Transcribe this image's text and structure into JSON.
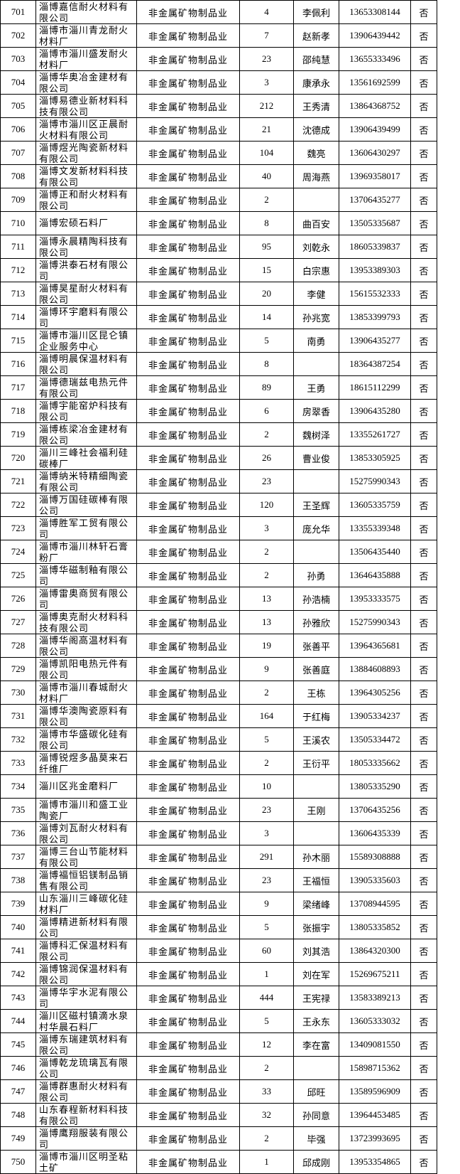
{
  "table": {
    "rows": [
      [
        "701",
        "淄博嘉信耐火材料有限公司",
        "非金属矿物制品业",
        4,
        "李佩利",
        "13653308144",
        "否"
      ],
      [
        "702",
        "淄博市淄川青龙耐火材料厂",
        "非金属矿物制品业",
        7,
        "赵新孝",
        "13906439442",
        "否"
      ],
      [
        "703",
        "淄博市淄川盛发耐火材料厂",
        "非金属矿物制品业",
        23,
        "邵纯慧",
        "13655333496",
        "否"
      ],
      [
        "704",
        "淄博华奥冶金建材有限公司",
        "非金属矿物制品业",
        3,
        "康承永",
        "13561692599",
        "否"
      ],
      [
        "705",
        "淄博易德业新材料科技有限公司",
        "非金属矿物制品业",
        212,
        "王秀清",
        "13864368752",
        "否"
      ],
      [
        "706",
        "淄博市淄川区正晨耐火材料有限公司",
        "非金属矿物制品业",
        21,
        "沈德成",
        "13906439499",
        "否"
      ],
      [
        "707",
        "淄博煜光陶瓷新材料有限公司",
        "非金属矿物制品业",
        104,
        "魏亮",
        "13606430297",
        "否"
      ],
      [
        "708",
        "淄博文发新材料科技有限公司",
        "非金属矿物制品业",
        40,
        "周海燕",
        "13969358017",
        "否"
      ],
      [
        "709",
        "淄博正和耐火材料有限公司",
        "非金属矿物制品业",
        2,
        null,
        "13706435277",
        "否"
      ],
      [
        "710",
        "淄博宏硕石料厂",
        "非金属矿物制品业",
        8,
        "曲百安",
        "13505335687",
        "否"
      ],
      [
        "711",
        "淄博永晨精陶科技有限公司",
        "非金属矿物制品业",
        95,
        "刘乾永",
        "18605339837",
        "否"
      ],
      [
        "712",
        "淄博洪泰石材有限公司",
        "非金属矿物制品业",
        15,
        "白宗惠",
        "13953389303",
        "否"
      ],
      [
        "713",
        "淄博昊星耐火材料有限公司",
        "非金属矿物制品业",
        20,
        "李健",
        "15615532333",
        "否"
      ],
      [
        "714",
        "淄博环宇磨料有限公司",
        "非金属矿物制品业",
        14,
        "孙兆宽",
        "13853399793",
        "否"
      ],
      [
        "715",
        "淄博市淄川区昆仑镇企业服务中心",
        "非金属矿物制品业",
        5,
        "南勇",
        "13906435277",
        "否"
      ],
      [
        "716",
        "淄博明晨保温材料有限公司",
        "非金属矿物制品业",
        8,
        null,
        "18364387254",
        "否"
      ],
      [
        "717",
        "淄博德瑞兹电热元件有限公司",
        "非金属矿物制品业",
        89,
        "王勇",
        "18615112299",
        "否"
      ],
      [
        "718",
        "淄博宇能窑炉科技有限公司",
        "非金属矿物制品业",
        6,
        "房翠香",
        "13906435280",
        "否"
      ],
      [
        "719",
        "淄博栋梁冶金建材有限公司",
        "非金属矿物制品业",
        2,
        "魏树泽",
        "13355261727",
        "否"
      ],
      [
        "720",
        "淄川三峰社会福利硅碳棒厂",
        "非金属矿物制品业",
        26,
        "曹业俊",
        "13853305925",
        "否"
      ],
      [
        "721",
        "淄博纳米特精细陶瓷有限公司",
        "非金属矿物制品业",
        23,
        null,
        "15275990343",
        "否"
      ],
      [
        "722",
        "淄博万国硅碳棒有限公司",
        "非金属矿物制品业",
        120,
        "王圣辉",
        "13605335759",
        "否"
      ],
      [
        "723",
        "淄博胜军工贸有限公司",
        "非金属矿物制品业",
        3,
        "庞允华",
        "13355339348",
        "否"
      ],
      [
        "724",
        "淄博市淄川林轩石膏粉厂",
        "非金属矿物制品业",
        2,
        null,
        "13506435440",
        "否"
      ],
      [
        "725",
        "淄博华磁制釉有限公司",
        "非金属矿物制品业",
        2,
        "孙勇",
        "13646435888",
        "否"
      ],
      [
        "726",
        "淄博雷奥商贸有限公司",
        "非金属矿物制品业",
        13,
        "孙浩楠",
        "13953333575",
        "否"
      ],
      [
        "727",
        "淄博奥克耐火材料科技有限公司",
        "非金属矿物制品业",
        13,
        "孙雅欣",
        "15275990343",
        "否"
      ],
      [
        "728",
        "淄博华阁高温材料有限公司",
        "非金属矿物制品业",
        19,
        "张善平",
        "13964365681",
        "否"
      ],
      [
        "729",
        "淄博凯阳电热元件有限公司",
        "非金属矿物制品业",
        9,
        "张善庭",
        "13884608893",
        "否"
      ],
      [
        "730",
        "淄博市淄川春城耐火材料厂",
        "非金属矿物制品业",
        2,
        "王栋",
        "13964305256",
        "否"
      ],
      [
        "731",
        "淄博华澳陶瓷原料有限公司",
        "非金属矿物制品业",
        164,
        "于红梅",
        "13905334237",
        "否"
      ],
      [
        "732",
        "淄博市华盛碳化硅有限公司",
        "非金属矿物制品业",
        5,
        "王溪农",
        "13505334472",
        "否"
      ],
      [
        "733",
        "淄博锐煜多晶莫来石纤维厂",
        "非金属矿物制品业",
        2,
        "王衍平",
        "18053335662",
        "否"
      ],
      [
        "734",
        "淄川区兆金磨料厂",
        "非金属矿物制品业",
        10,
        null,
        "13805335290",
        "否"
      ],
      [
        "735",
        "淄博市淄川和盛工业陶瓷厂",
        "非金属矿物制品业",
        23,
        "王刚",
        "13706435256",
        "否"
      ],
      [
        "736",
        "淄博刘瓦耐火材料有限公司",
        "非金属矿物制品业",
        3,
        null,
        "13606435339",
        "否"
      ],
      [
        "737",
        "淄博三台山节能材料有限公司",
        "非金属矿物制品业",
        291,
        "孙木丽",
        "15589308888",
        "否"
      ],
      [
        "738",
        "淄博福恒铝镁制品销售有限公司",
        "非金属矿物制品业",
        23,
        "王福恒",
        "13905335603",
        "否"
      ],
      [
        "739",
        "山东淄川三峰碳化硅材料厂",
        "非金属矿物制品业",
        9,
        "梁绪峰",
        "13708944595",
        "否"
      ],
      [
        "740",
        "淄博精进新材料有限公司",
        "非金属矿物制品业",
        5,
        "张振宇",
        "13805335852",
        "否"
      ],
      [
        "741",
        "淄博科汇保温材料有限公司",
        "非金属矿物制品业",
        60,
        "刘其浩",
        "13864320300",
        "否"
      ],
      [
        "742",
        "淄博锦润保温材料有限公司",
        "非金属矿物制品业",
        1,
        "刘在军",
        "15269675211",
        "否"
      ],
      [
        "743",
        "淄博华宇水泥有限公司",
        "非金属矿物制品业",
        444,
        "王宪禄",
        "13583389213",
        "否"
      ],
      [
        "744",
        "淄川区磁村镇滴水泉村华晨石料厂",
        "非金属矿物制品业",
        5,
        "王永东",
        "13605333032",
        "否"
      ],
      [
        "745",
        "淄博东瑞建筑材料有限公司",
        "非金属矿物制品业",
        12,
        "李在富",
        "13409081550",
        "否"
      ],
      [
        "746",
        "淄博乾龙琉璃瓦有限公司",
        "非金属矿物制品业",
        2,
        null,
        "15898715362",
        "否"
      ],
      [
        "747",
        "淄博群惠耐火材料有限公司",
        "非金属矿物制品业",
        33,
        "邱旺",
        "13589596909",
        "否"
      ],
      [
        "748",
        "山东春程新材料科技有限公司",
        "非金属矿物制品业",
        32,
        "孙同意",
        "13964453485",
        "否"
      ],
      [
        "749",
        "淄博鹰翔服装有限公司",
        "非金属矿物制品业",
        2,
        "毕强",
        "13723993695",
        "否"
      ],
      [
        "750",
        "淄博市淄川区明圣粘土矿",
        "非金属矿物制品业",
        1,
        "邱成刚",
        "13953354865",
        "否"
      ]
    ]
  }
}
